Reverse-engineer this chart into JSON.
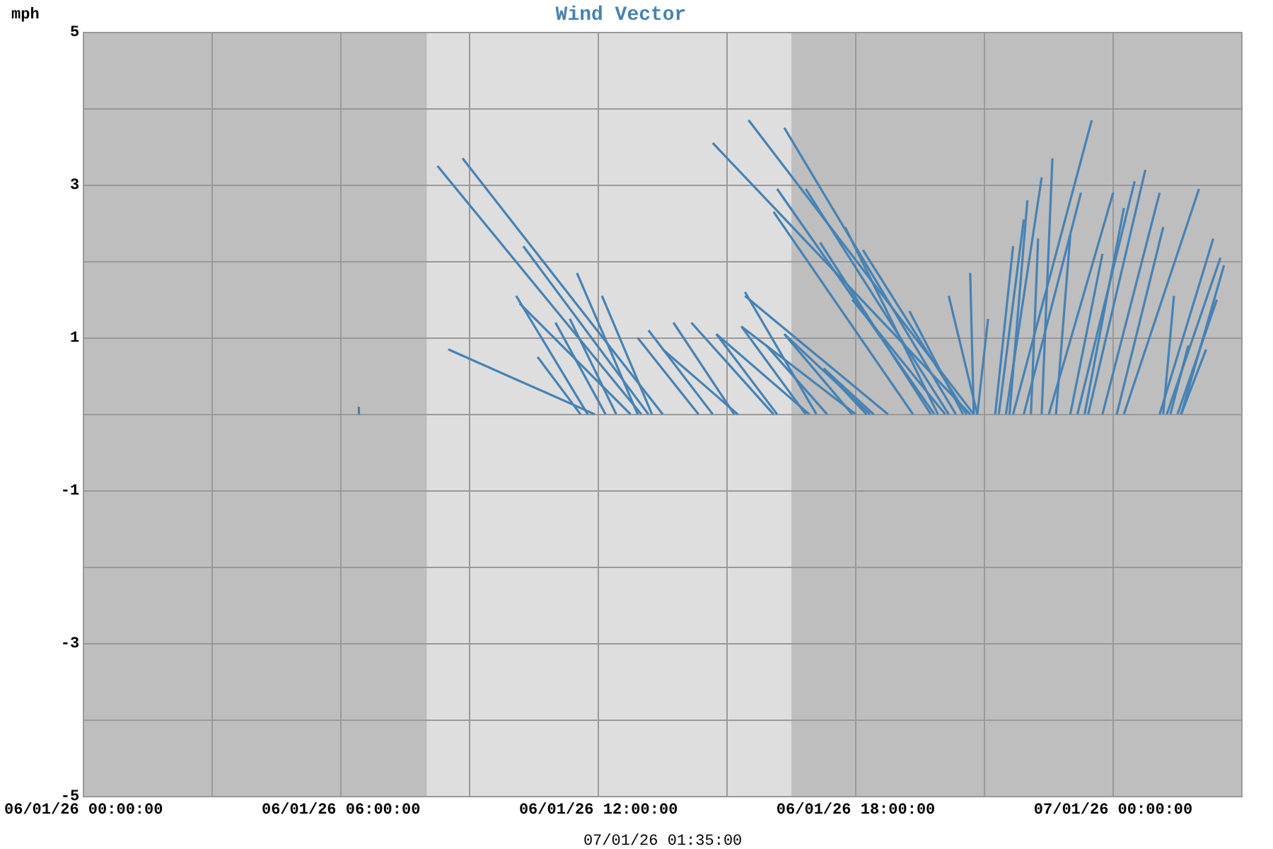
{
  "chart_data": {
    "type": "line",
    "title": "Wind Vector",
    "ylabel": "mph",
    "annotations": [
      "07/01/26 01:35:00"
    ],
    "xlim": [
      "--01-06T00:00",
      "--01-07T03:00"
    ],
    "xticks": [
      {
        "value": "--01-06T00:00",
        "label": "06/01/26 00:00:00"
      },
      {
        "value": "--01-06T03:00",
        "label": null
      },
      {
        "value": "--01-06T06:00",
        "label": "06/01/26 06:00:00"
      },
      {
        "value": "--01-06T09:00",
        "label": null
      },
      {
        "value": "--01-06T12:00",
        "label": "06/01/26 12:00:00"
      },
      {
        "value": "--01-06T15:00",
        "label": null
      },
      {
        "value": "--01-06T18:00",
        "label": "06/01/26 18:00:00"
      },
      {
        "value": "--01-06T21:00",
        "label": null
      },
      {
        "value": "--01-07T00:00",
        "label": "07/01/26 00:00:00"
      },
      {
        "value": "--01-07T03:00",
        "label": null
      }
    ],
    "ylim": [
      -5,
      5
    ],
    "yticks": [
      -5,
      {
        "value": -4,
        "label": null
      },
      -3,
      {
        "value": -2,
        "label": null
      },
      -1,
      {
        "value": 0,
        "label": null
      },
      1,
      {
        "value": 2,
        "label": null
      },
      3,
      {
        "value": 4,
        "label": null
      },
      5
    ],
    "grid": true,
    "legend": false,
    "marker": "none",
    "line_style": "solid",
    "bands": [
      {
        "axis": "x",
        "from": "--01-06T08:00",
        "to": "--01-06T16:30",
        "color": "#dedede"
      }
    ],
    "series": [
      {
        "color": "#4682b4",
        "x": [
          "--01-06T06:25",
          "--01-06T06:25"
        ],
        "values": [
          0,
          0.1
        ]
      },
      {
        "color": "#4682b4",
        "x": [
          "--01-06T13:00",
          "--01-06T08:15"
        ],
        "values": [
          0,
          3.25
        ]
      },
      {
        "color": "#4682b4",
        "x": [
          "--01-06T13:30",
          "--01-06T08:50"
        ],
        "values": [
          0,
          3.35
        ]
      },
      {
        "color": "#4682b4",
        "x": [
          "--01-06T13:10",
          "--01-06T10:15"
        ],
        "values": [
          0,
          2.2
        ]
      },
      {
        "color": "#4682b4",
        "x": [
          "--01-06T12:55",
          "--01-06T11:30"
        ],
        "values": [
          0,
          1.85
        ]
      },
      {
        "color": "#4682b4",
        "x": [
          "--01-06T13:15",
          "--01-06T12:05"
        ],
        "values": [
          0,
          1.55
        ]
      },
      {
        "color": "#4682b4",
        "x": [
          "--01-06T11:45",
          "--01-06T10:05"
        ],
        "values": [
          0,
          1.55
        ]
      },
      {
        "color": "#4682b4",
        "x": [
          "--01-06T12:45",
          "--01-06T10:10"
        ],
        "values": [
          0,
          1.45
        ]
      },
      {
        "color": "#4682b4",
        "x": [
          "--01-06T11:55",
          "--01-06T08:30"
        ],
        "values": [
          0,
          0.85
        ]
      },
      {
        "color": "#4682b4",
        "x": [
          "--01-06T12:10",
          "--01-06T11:00"
        ],
        "values": [
          0,
          1.2
        ]
      },
      {
        "color": "#4682b4",
        "x": [
          "--01-06T12:25",
          "--01-06T11:20"
        ],
        "values": [
          0,
          1.25
        ]
      },
      {
        "color": "#4682b4",
        "x": [
          "--01-06T11:35",
          "--01-06T10:35"
        ],
        "values": [
          0,
          0.75
        ]
      },
      {
        "color": "#4682b4",
        "x": [
          "--01-06T14:20",
          "--01-06T12:55"
        ],
        "values": [
          0,
          1.0
        ]
      },
      {
        "color": "#4682b4",
        "x": [
          "--01-06T14:40",
          "--01-06T13:10"
        ],
        "values": [
          0,
          1.1
        ]
      },
      {
        "color": "#4682b4",
        "x": [
          "--01-06T15:10",
          "--01-06T13:45"
        ],
        "values": [
          0,
          1.2
        ]
      },
      {
        "color": "#4682b4",
        "x": [
          "--01-06T16:05",
          "--01-06T14:10"
        ],
        "values": [
          0,
          1.2
        ]
      },
      {
        "color": "#4682b4",
        "x": [
          "--01-06T16:10",
          "--01-06T14:45"
        ],
        "values": [
          0,
          1.05
        ]
      },
      {
        "color": "#4682b4",
        "x": [
          "--01-06T17:05",
          "--01-06T15:25"
        ],
        "values": [
          0,
          1.6
        ]
      },
      {
        "color": "#4682b4",
        "x": [
          "--01-06T16:50",
          "--01-06T15:20"
        ],
        "values": [
          0,
          1.15
        ]
      },
      {
        "color": "#4682b4",
        "x": [
          "--01-06T17:20",
          "--01-06T15:55"
        ],
        "values": [
          0,
          0.9
        ]
      },
      {
        "color": "#4682b4",
        "x": [
          "--01-06T17:55",
          "--01-06T16:20"
        ],
        "values": [
          0,
          1.05
        ]
      },
      {
        "color": "#4682b4",
        "x": [
          "--01-06T18:15",
          "--01-06T17:15"
        ],
        "values": [
          0,
          0.6
        ]
      },
      {
        "color": "#4682b4",
        "x": [
          "--01-06T15:15",
          "--01-06T13:30"
        ],
        "values": [
          0,
          0.85
        ]
      },
      {
        "color": "#4682b4",
        "x": [
          "--01-06T20:40",
          "--01-06T14:40"
        ],
        "values": [
          0,
          3.55
        ]
      },
      {
        "color": "#4682b4",
        "x": [
          "--01-06T20:45",
          "--01-06T15:30"
        ],
        "values": [
          0,
          3.85
        ]
      },
      {
        "color": "#4682b4",
        "x": [
          "--01-06T20:20",
          "--01-06T16:20"
        ],
        "values": [
          0,
          3.75
        ]
      },
      {
        "color": "#4682b4",
        "x": [
          "--01-06T19:50",
          "--01-06T16:10"
        ],
        "values": [
          0,
          2.95
        ]
      },
      {
        "color": "#4682b4",
        "x": [
          "--01-06T19:20",
          "--01-06T16:05"
        ],
        "values": [
          0,
          2.65
        ]
      },
      {
        "color": "#4682b4",
        "x": [
          "--01-06T20:10",
          "--01-06T16:50"
        ],
        "values": [
          0,
          2.95
        ]
      },
      {
        "color": "#4682b4",
        "x": [
          "--01-06T19:55",
          "--01-06T17:45"
        ],
        "values": [
          0,
          2.45
        ]
      },
      {
        "color": "#4682b4",
        "x": [
          "--01-06T20:35",
          "--01-06T18:10"
        ],
        "values": [
          0,
          2.15
        ]
      },
      {
        "color": "#4682b4",
        "x": [
          "--01-06T20:30",
          "--01-06T19:15"
        ],
        "values": [
          0,
          1.35
        ]
      },
      {
        "color": "#4682b4",
        "x": [
          "--01-06T18:45",
          "--01-06T15:25"
        ],
        "values": [
          0,
          1.55
        ]
      },
      {
        "color": "#4682b4",
        "x": [
          "--01-06T18:00",
          "--01-06T15:20"
        ],
        "values": [
          0,
          1.15
        ]
      },
      {
        "color": "#4682b4",
        "x": [
          "--01-06T18:20",
          "--01-06T16:20"
        ],
        "values": [
          0,
          1.05
        ]
      },
      {
        "color": "#4682b4",
        "x": [
          "--01-06T18:25",
          "--01-06T17:15"
        ],
        "values": [
          0,
          0.6
        ]
      },
      {
        "color": "#4682b4",
        "x": [
          "--01-06T16:55",
          "--01-06T14:45"
        ],
        "values": [
          0,
          1.05
        ]
      },
      {
        "color": "#4682b4",
        "x": [
          "--01-06T19:45",
          "--01-06T17:10"
        ],
        "values": [
          0,
          2.25
        ]
      },
      {
        "color": "#4682b4",
        "x": [
          "--01-06T20:05",
          "--01-06T17:55"
        ],
        "values": [
          0,
          1.5
        ]
      },
      {
        "color": "#4682b4",
        "x": [
          "--01-06T20:45",
          "--01-06T20:40"
        ],
        "values": [
          0,
          1.85
        ]
      },
      {
        "color": "#4682b4",
        "x": [
          "--01-06T20:50",
          "--01-06T20:10"
        ],
        "values": [
          0,
          1.55
        ]
      },
      {
        "color": "#4682b4",
        "x": [
          "--01-06T20:50",
          "--01-06T21:05"
        ],
        "values": [
          0,
          1.25
        ]
      },
      {
        "color": "#4682b4",
        "x": [
          "--01-06T21:15",
          "--01-06T21:40"
        ],
        "values": [
          0,
          2.2
        ]
      },
      {
        "color": "#4682b4",
        "x": [
          "--01-06T21:30",
          "--01-06T22:20"
        ],
        "values": [
          0,
          3.1
        ]
      },
      {
        "color": "#4682b4",
        "x": [
          "--01-06T22:20",
          "--01-06T22:35"
        ],
        "values": [
          0,
          3.35
        ]
      },
      {
        "color": "#4682b4",
        "x": [
          "--01-06T21:40",
          "--01-06T23:30"
        ],
        "values": [
          0,
          3.85
        ]
      },
      {
        "color": "#4682b4",
        "x": [
          "--01-06T21:55",
          "--01-06T23:15"
        ],
        "values": [
          0,
          2.9
        ]
      },
      {
        "color": "#4682b4",
        "x": [
          "--01-06T22:30",
          "--01-07T00:00"
        ],
        "values": [
          0,
          2.9
        ]
      },
      {
        "color": "#4682b4",
        "x": [
          "--01-06T22:40",
          "--01-06T23:00"
        ],
        "values": [
          0,
          2.35
        ]
      },
      {
        "color": "#4682b4",
        "x": [
          "--01-06T23:00",
          "--01-06T23:45"
        ],
        "values": [
          0,
          2.1
        ]
      },
      {
        "color": "#4682b4",
        "x": [
          "--01-06T23:10",
          "--01-07T00:30"
        ],
        "values": [
          0,
          3.05
        ]
      },
      {
        "color": "#4682b4",
        "x": [
          "--01-06T23:25",
          "--01-07T00:45"
        ],
        "values": [
          0,
          3.2
        ]
      },
      {
        "color": "#4682b4",
        "x": [
          "--01-06T23:45",
          "--01-07T01:05"
        ],
        "values": [
          0,
          2.9
        ]
      },
      {
        "color": "#4682b4",
        "x": [
          "--01-07T00:05",
          "--01-07T01:10"
        ],
        "values": [
          0,
          2.45
        ]
      },
      {
        "color": "#4682b4",
        "x": [
          "--01-07T00:15",
          "--01-07T02:00"
        ],
        "values": [
          0,
          2.95
        ]
      },
      {
        "color": "#4682b4",
        "x": [
          "--01-07T01:10",
          "--01-07T01:25"
        ],
        "values": [
          0,
          1.55
        ]
      },
      {
        "color": "#4682b4",
        "x": [
          "--01-07T01:05",
          "--01-07T02:20"
        ],
        "values": [
          0,
          2.3
        ]
      },
      {
        "color": "#4682b4",
        "x": [
          "--01-07T01:15",
          "--01-07T02:30"
        ],
        "values": [
          0,
          2.05
        ]
      },
      {
        "color": "#4682b4",
        "x": [
          "--01-07T01:35",
          "--01-07T02:35"
        ],
        "values": [
          0,
          1.95
        ]
      },
      {
        "color": "#4682b4",
        "x": [
          "--01-07T01:30",
          "--01-07T02:25"
        ],
        "values": [
          0,
          1.5
        ]
      },
      {
        "color": "#4682b4",
        "x": [
          "--01-07T01:35",
          "--01-07T02:10"
        ],
        "values": [
          0,
          0.85
        ]
      },
      {
        "color": "#4682b4",
        "x": [
          "--01-07T01:20",
          "--01-07T01:45"
        ],
        "values": [
          0,
          0.9
        ]
      },
      {
        "color": "#4682b4",
        "x": [
          "--01-06T23:20",
          "--01-07T00:15"
        ],
        "values": [
          0,
          2.7
        ]
      },
      {
        "color": "#4682b4",
        "x": [
          "--01-06T21:35",
          "--01-06T22:00"
        ],
        "values": [
          0,
          2.8
        ]
      },
      {
        "color": "#4682b4",
        "x": [
          "--01-06T21:20",
          "--01-06T21:55"
        ],
        "values": [
          0,
          2.55
        ]
      },
      {
        "color": "#4682b4",
        "x": [
          "--01-06T22:05",
          "--01-06T22:15"
        ],
        "values": [
          0,
          2.3
        ]
      }
    ]
  }
}
